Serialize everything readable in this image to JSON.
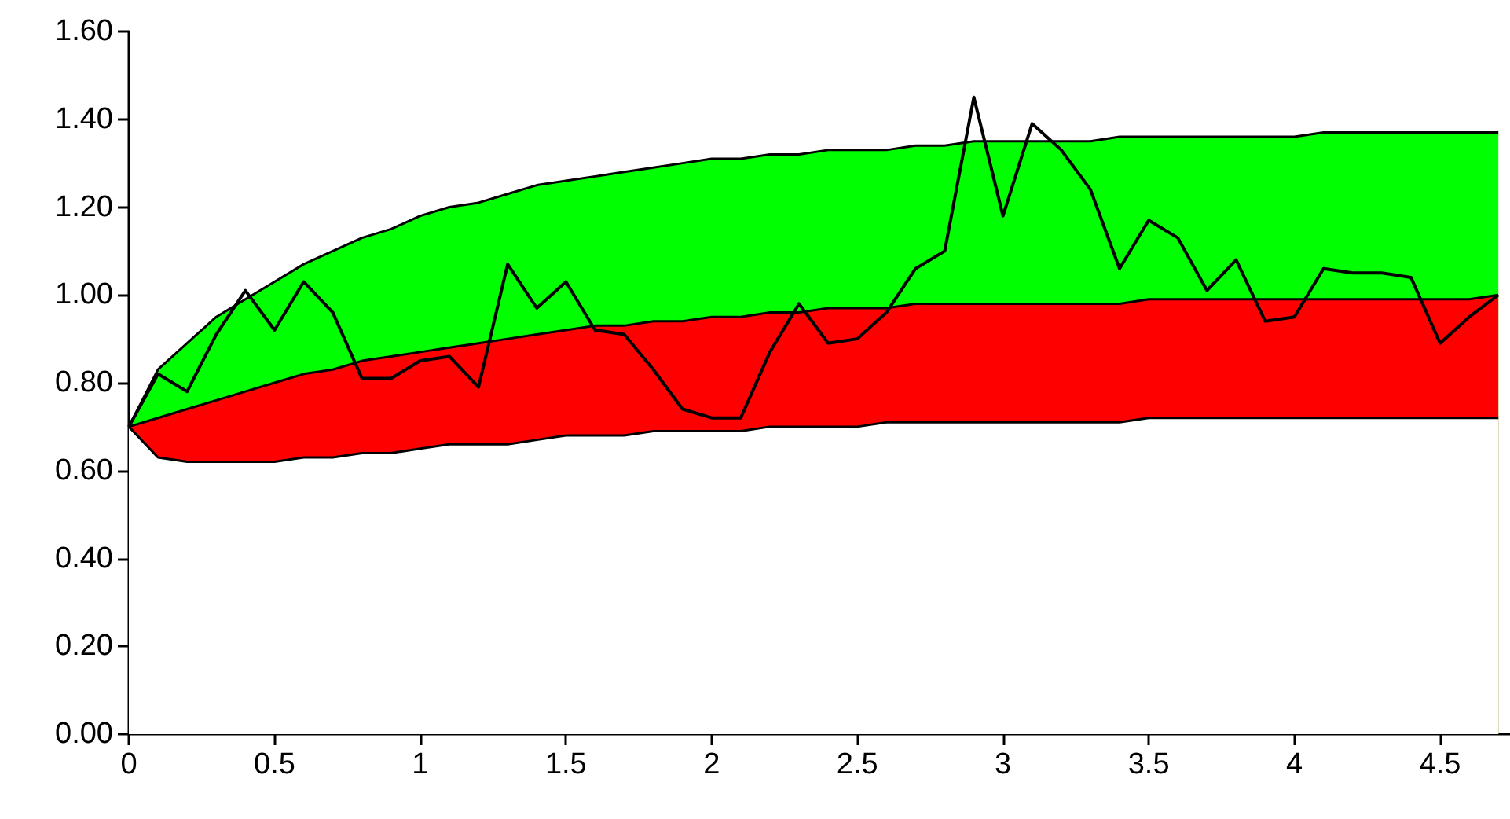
{
  "chart_data": {
    "type": "line",
    "x": [
      0,
      0.1,
      0.2,
      0.3,
      0.4,
      0.5,
      0.6,
      0.7,
      0.8,
      0.9,
      1.0,
      1.1,
      1.2,
      1.3,
      1.4,
      1.5,
      1.6,
      1.7,
      1.8,
      1.9,
      2.0,
      2.1,
      2.2,
      2.3,
      2.4,
      2.5,
      2.6,
      2.7,
      2.8,
      2.9,
      3.0,
      3.1,
      3.2,
      3.3,
      3.4,
      3.5,
      3.6,
      3.7,
      3.8,
      3.9,
      4.0,
      4.1,
      4.2,
      4.3,
      4.4,
      4.5,
      4.6,
      4.7
    ],
    "series": [
      {
        "type": "area",
        "color": "#00ff00",
        "values": [
          0.7,
          0.83,
          0.89,
          0.95,
          0.99,
          1.03,
          1.07,
          1.1,
          1.13,
          1.15,
          1.18,
          1.2,
          1.21,
          1.23,
          1.25,
          1.26,
          1.27,
          1.28,
          1.29,
          1.3,
          1.31,
          1.31,
          1.32,
          1.32,
          1.33,
          1.33,
          1.33,
          1.34,
          1.34,
          1.35,
          1.35,
          1.35,
          1.35,
          1.35,
          1.36,
          1.36,
          1.36,
          1.36,
          1.36,
          1.36,
          1.36,
          1.37,
          1.37,
          1.37,
          1.37,
          1.37,
          1.37,
          1.37
        ]
      },
      {
        "type": "area",
        "color": "#ff0000",
        "values": [
          0.7,
          0.72,
          0.74,
          0.76,
          0.78,
          0.8,
          0.82,
          0.83,
          0.85,
          0.86,
          0.87,
          0.88,
          0.89,
          0.9,
          0.91,
          0.92,
          0.93,
          0.93,
          0.94,
          0.94,
          0.95,
          0.95,
          0.96,
          0.96,
          0.97,
          0.97,
          0.97,
          0.98,
          0.98,
          0.98,
          0.98,
          0.98,
          0.98,
          0.98,
          0.98,
          0.99,
          0.99,
          0.99,
          0.99,
          0.99,
          0.99,
          0.99,
          0.99,
          0.99,
          0.99,
          0.99,
          0.99,
          1.0
        ]
      },
      {
        "type": "area",
        "color": "#ffffff",
        "values": [
          0.7,
          0.63,
          0.62,
          0.62,
          0.62,
          0.62,
          0.63,
          0.63,
          0.64,
          0.64,
          0.65,
          0.66,
          0.66,
          0.66,
          0.67,
          0.68,
          0.68,
          0.68,
          0.69,
          0.69,
          0.69,
          0.69,
          0.7,
          0.7,
          0.7,
          0.7,
          0.71,
          0.71,
          0.71,
          0.71,
          0.71,
          0.71,
          0.71,
          0.71,
          0.71,
          0.72,
          0.72,
          0.72,
          0.72,
          0.72,
          0.72,
          0.72,
          0.72,
          0.72,
          0.72,
          0.72,
          0.72,
          0.72
        ]
      },
      {
        "color": "#000000",
        "values": [
          0.7,
          0.82,
          0.78,
          0.91,
          1.01,
          0.92,
          1.03,
          0.96,
          0.81,
          0.81,
          0.85,
          0.86,
          0.79,
          1.07,
          0.97,
          1.03,
          0.92,
          0.91,
          0.83,
          0.74,
          0.72,
          0.72,
          0.87,
          0.98,
          0.89,
          0.9,
          0.96,
          1.06,
          1.1,
          1.45,
          1.18,
          1.39,
          1.33,
          1.24,
          1.06,
          1.17,
          1.13,
          1.01,
          1.08,
          0.94,
          0.95,
          1.06,
          1.05,
          1.05,
          1.04,
          0.89,
          0.95,
          1.0
        ]
      }
    ],
    "xlim": [
      0,
      4.74
    ],
    "xticks": [
      0,
      0.5,
      1,
      1.5,
      2,
      2.5,
      3,
      3.5,
      4,
      4.5
    ],
    "ylim": [
      0,
      1.6
    ],
    "yticks": [
      {
        "value": 0,
        "label": "0.00"
      },
      {
        "value": 0.2,
        "label": "0.20"
      },
      {
        "value": 0.4,
        "label": "0.40"
      },
      {
        "value": 0.6,
        "label": "0.60"
      },
      {
        "value": 0.8,
        "label": "0.80"
      },
      {
        "value": 1.0,
        "label": "1.00"
      },
      {
        "value": 1.2,
        "label": "1.20"
      },
      {
        "value": 1.4,
        "label": "1.40"
      },
      {
        "value": 1.6,
        "label": "1.60"
      }
    ],
    "grid": false,
    "marker": "none",
    "line_style": "solid"
  }
}
